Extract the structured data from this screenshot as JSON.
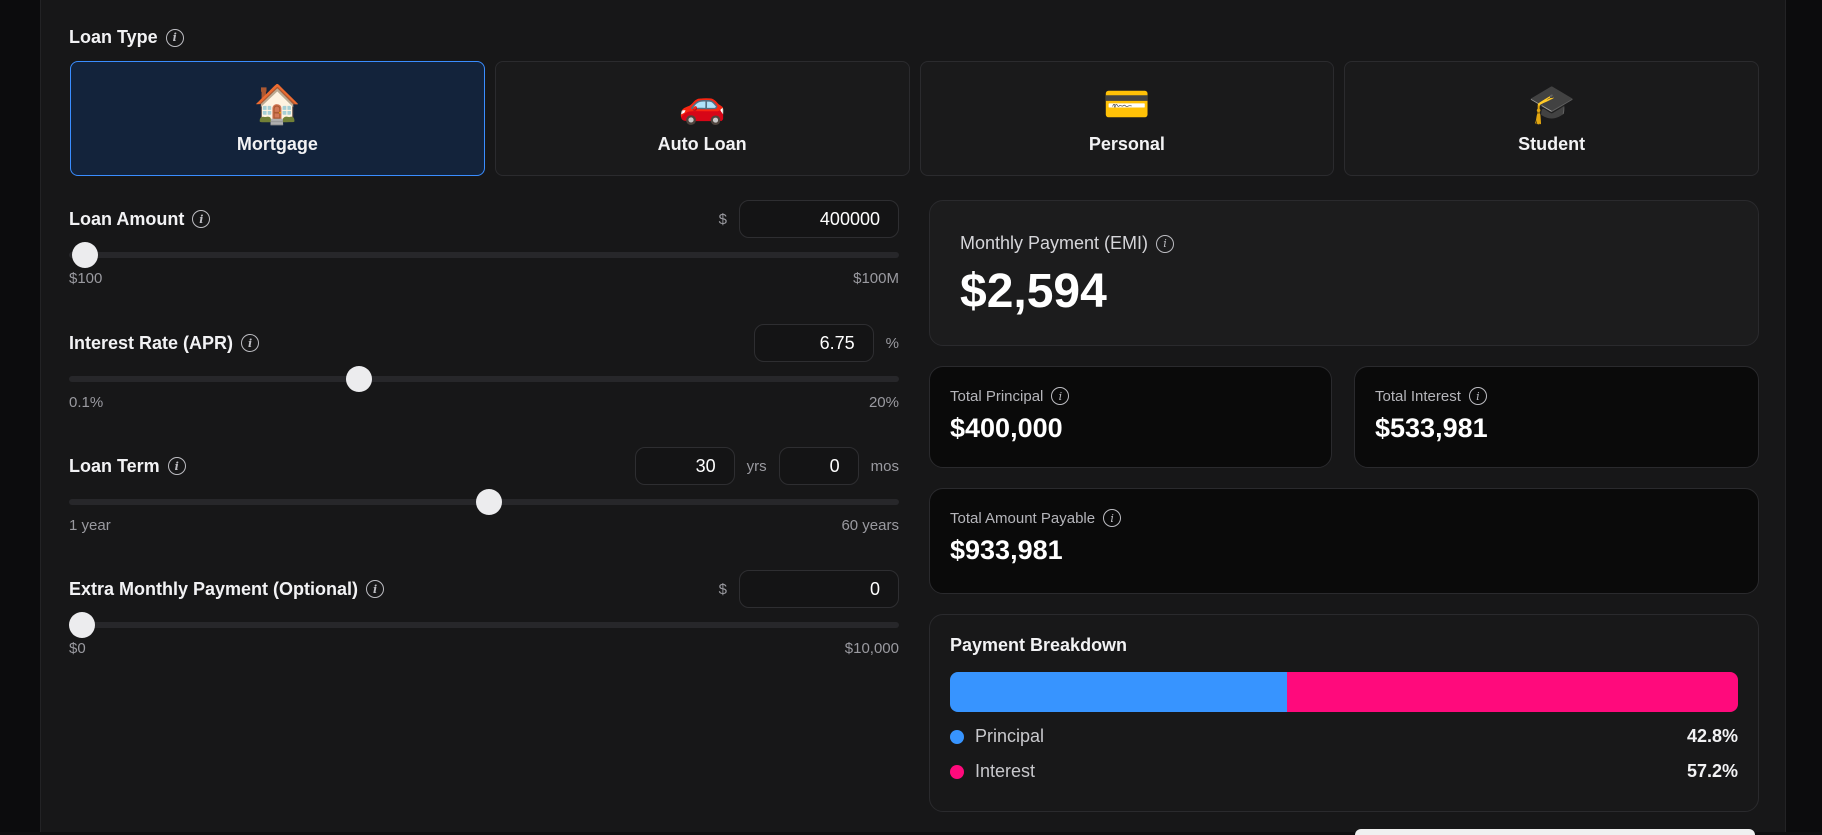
{
  "loan_type": {
    "label": "Loan Type",
    "options": [
      {
        "emoji": "🏠",
        "name": "Mortgage",
        "active": true
      },
      {
        "emoji": "🚗",
        "name": "Auto Loan",
        "active": false
      },
      {
        "emoji": "💳",
        "name": "Personal",
        "active": false
      },
      {
        "emoji": "🎓",
        "name": "Student",
        "active": false
      }
    ]
  },
  "inputs": {
    "loan_amount": {
      "label": "Loan Amount",
      "prefix": "$",
      "value": "400000",
      "min_label": "$100",
      "max_label": "$100M",
      "slider_fraction": 0.004
    },
    "interest_rate": {
      "label": "Interest Rate (APR)",
      "suffix": "%",
      "value": "6.75",
      "min_label": "0.1%",
      "max_label": "20%",
      "slider_fraction": 0.334
    },
    "loan_term": {
      "label": "Loan Term",
      "years_value": "30",
      "years_unit": "yrs",
      "months_value": "0",
      "months_unit": "mos",
      "min_label": "1 year",
      "max_label": "60 years",
      "slider_fraction": 0.49
    },
    "extra_payment": {
      "label": "Extra Monthly Payment (Optional)",
      "prefix": "$",
      "value": "0",
      "min_label": "$0",
      "max_label": "$10,000",
      "slider_fraction": 0.0
    }
  },
  "results": {
    "emi_title": "Monthly Payment (EMI)",
    "emi_value": "$2,594",
    "total_principal_title": "Total Principal",
    "total_principal_value": "$400,000",
    "total_interest_title": "Total Interest",
    "total_interest_value": "$533,981",
    "total_payable_title": "Total Amount Payable",
    "total_payable_value": "$933,981"
  },
  "breakdown": {
    "title": "Payment Breakdown",
    "principal_label": "Principal",
    "principal_pct": "42.8%",
    "principal_fraction": 0.428,
    "interest_label": "Interest",
    "interest_pct": "57.2%",
    "interest_fraction": 0.572
  },
  "colors": {
    "accent_blue": "#3794ff",
    "accent_pink": "#ff0a7c",
    "active_card_border": "#3a8dff"
  },
  "icons": {
    "info": "info-icon"
  }
}
